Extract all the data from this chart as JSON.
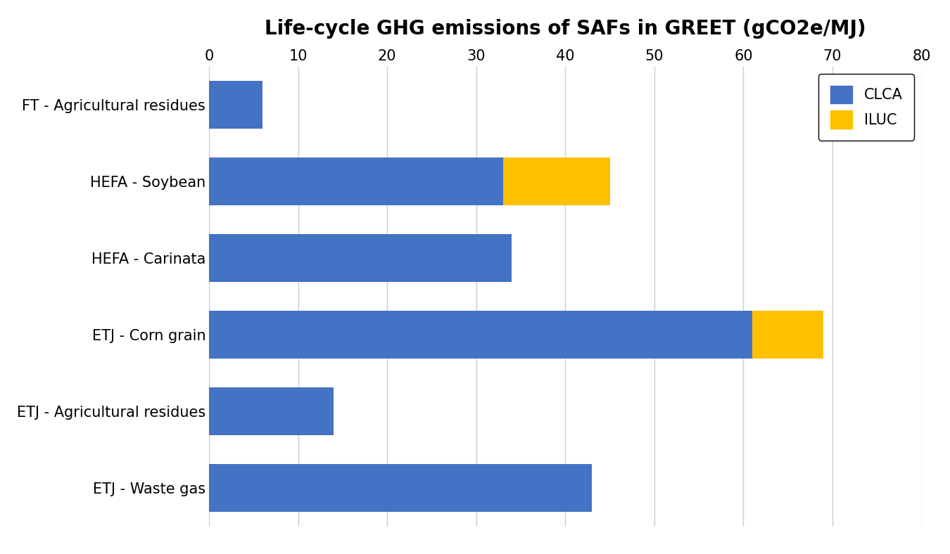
{
  "categories": [
    "FT - Agricultural residues",
    "HEFA - Soybean",
    "HEFA - Carinata",
    "ETJ - Corn grain",
    "ETJ - Agricultural residues",
    "ETJ - Waste gas"
  ],
  "clca_values": [
    6.0,
    33.0,
    34.0,
    61.0,
    14.0,
    43.0
  ],
  "iluc_values": [
    0.0,
    12.0,
    0.0,
    8.0,
    0.0,
    0.0
  ],
  "clca_color": "#4472C4",
  "iluc_color": "#FFC000",
  "title": "Life-cycle GHG emissions of SAFs in GREET (gCO2e/MJ)",
  "xlim": [
    0,
    80
  ],
  "xticks": [
    0,
    10,
    20,
    30,
    40,
    50,
    60,
    70,
    80
  ],
  "legend_labels": [
    "CLCA",
    "ILUC"
  ],
  "bar_height": 0.62,
  "title_fontsize": 20,
  "tick_fontsize": 15,
  "label_fontsize": 15,
  "legend_fontsize": 15,
  "background_color": "#FFFFFF",
  "grid_color": "#CCCCCC"
}
